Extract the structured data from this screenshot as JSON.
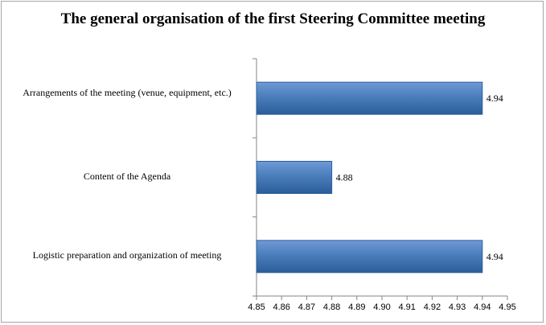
{
  "chart_data": {
    "type": "bar",
    "orientation": "horizontal",
    "title": "The general organisation of the first  Steering Committee meeting",
    "categories": [
      "Arrangements of the meeting (venue, equipment, etc.)",
      "Content of the Agenda",
      "Logistic preparation and organization of meeting"
    ],
    "values": [
      4.94,
      4.88,
      4.94
    ],
    "value_labels": [
      "4.94",
      "4.88",
      "4.94"
    ],
    "xlim": [
      4.85,
      4.95
    ],
    "x_ticks": [
      "4.85",
      "4.86",
      "4.87",
      "4.88",
      "4.89",
      "4.90",
      "4.91",
      "4.92",
      "4.93",
      "4.94",
      "4.95"
    ],
    "grid": false,
    "legend": "none",
    "bar_color": "#4a7ebb"
  }
}
